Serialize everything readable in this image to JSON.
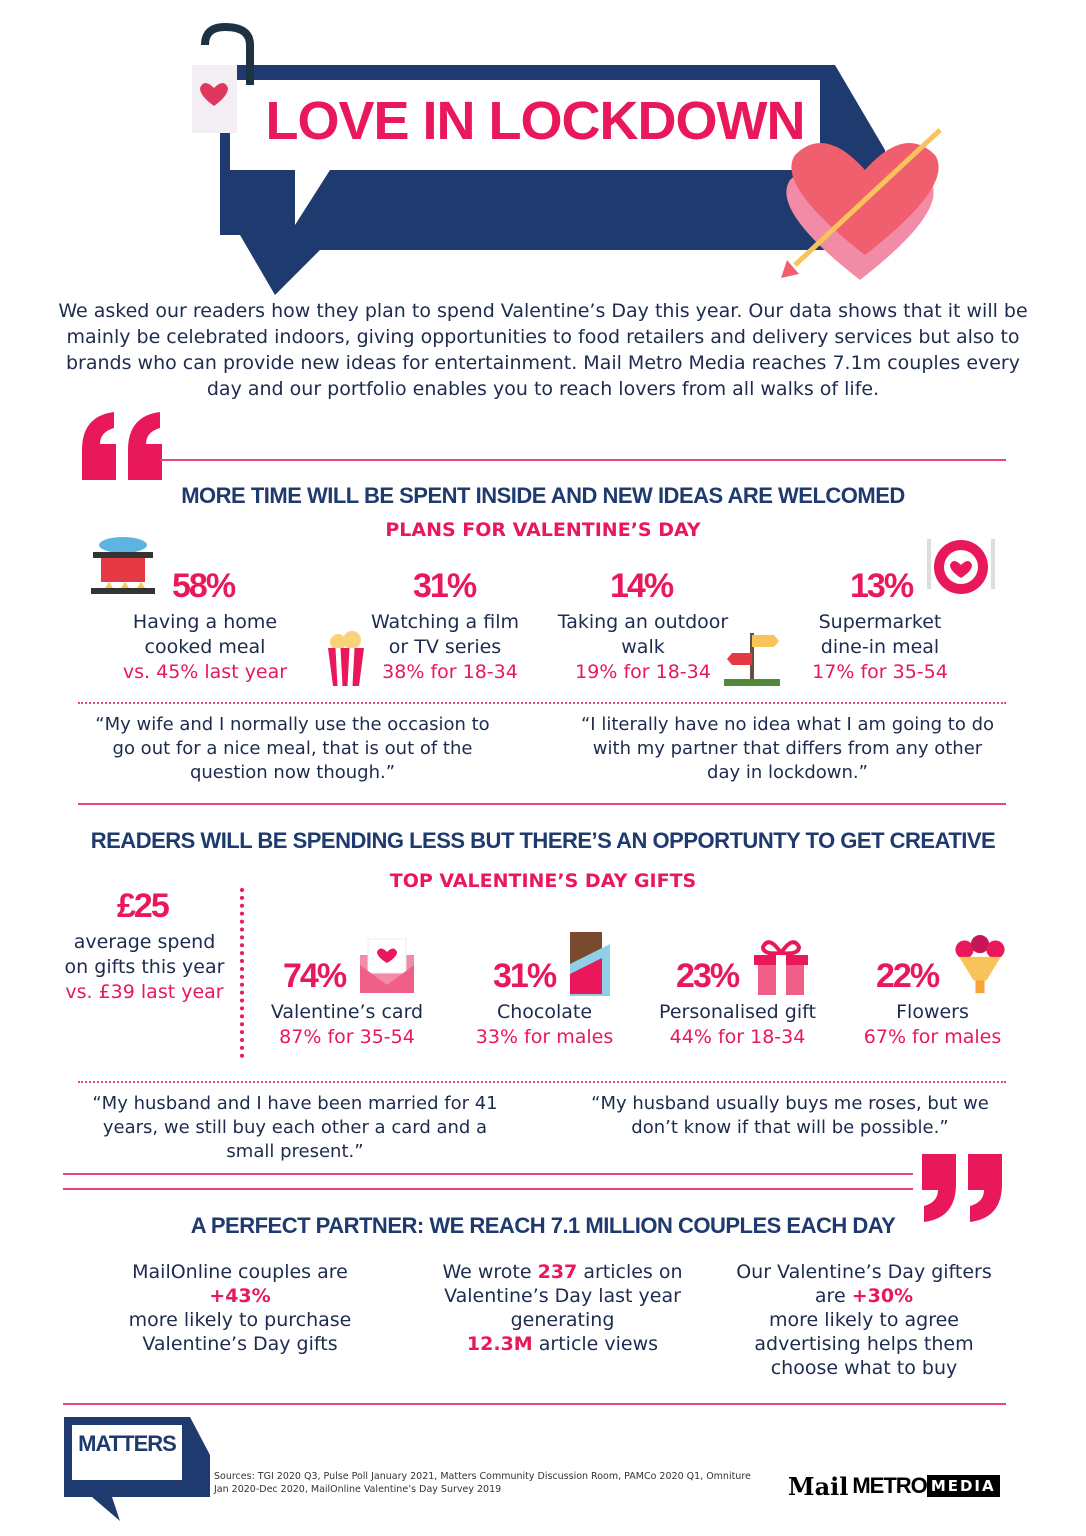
{
  "header": {
    "title": "LOVE IN LOCKDOWN"
  },
  "intro": "We asked our readers how they plan to spend Valentine’s Day this year. Our data shows that it will be mainly be celebrated indoors, giving opportunities to food retailers and delivery services but also to brands who can provide new ideas for entertainment. Mail Metro Media reaches 7.1m couples every day and our portfolio enables you to reach lovers from all walks of life.",
  "colors": {
    "accent": "#e8185a",
    "navy": "#1e3a6e",
    "text": "#1d2b4f"
  },
  "section1": {
    "heading": "MORE TIME WILL BE SPENT INSIDE AND NEW IDEAS ARE WELCOMED",
    "subheading": "PLANS FOR VALENTINE’S DAY",
    "stats": [
      {
        "value": "58%",
        "line1": "Having a home",
        "line2": "cooked meal",
        "detail": "vs. 45% last year",
        "icon": "cooking-pot-icon"
      },
      {
        "value": "31%",
        "line1": "Watching a film",
        "line2": "or TV series",
        "detail": "38% for 18-34",
        "icon": "popcorn-icon"
      },
      {
        "value": "14%",
        "line1": "Taking an outdoor",
        "line2": "walk",
        "detail": "19% for 18-34",
        "icon": "signpost-icon"
      },
      {
        "value": "13%",
        "line1": "Supermarket",
        "line2": "dine-in meal",
        "detail": "17% for 35-54",
        "icon": "plate-heart-icon"
      }
    ],
    "quotes": [
      "“My wife and I normally use the occasion to go out for a nice meal, that is out of the question now though.”",
      "“I literally have no idea what I am going to do with my partner that differs from any other day in lockdown.”"
    ]
  },
  "section2": {
    "heading": "READERS WILL BE SPENDING LESS BUT THERE’S AN OPPORTUNTY TO GET CREATIVE",
    "subheading": "TOP VALENTINE’S DAY GIFTS",
    "spend": {
      "value": "£25",
      "label": "average spend on gifts this year",
      "detail": "vs. £39 last year"
    },
    "gifts": [
      {
        "value": "74%",
        "label": "Valentine’s card",
        "detail": "87% for 35-54",
        "icon": "envelope-heart-icon"
      },
      {
        "value": "31%",
        "label": "Chocolate",
        "detail": "33% for males",
        "icon": "chocolate-icon"
      },
      {
        "value": "23%",
        "label": "Personalised gift",
        "detail": "44% for 18-34",
        "icon": "gift-icon"
      },
      {
        "value": "22%",
        "label": "Flowers",
        "detail": "67% for males",
        "icon": "flowers-icon"
      }
    ],
    "quotes": [
      "“My husband and I have been married for 41 years, we still buy each other a card and a small present.”",
      "“My husband usually buys me roses, but we don’t know if that will be possible.”"
    ]
  },
  "section3": {
    "heading": "A PERFECT PARTNER: WE REACH 7.1 MILLION COUPLES EACH DAY",
    "col1": {
      "a": "MailOnline couples are",
      "hl": "+43%",
      "b": "more likely to purchase Valentine’s Day gifts"
    },
    "col2": {
      "a": "We wrote",
      "hl1": "237",
      "b": "articles on Valentine’s Day last year generating",
      "hl2": "12.3M",
      "c": "article views"
    },
    "col3": {
      "a": "Our Valentine’s Day gifters are",
      "hl": "+30%",
      "b": "more likely to agree advertising helps them choose what to buy"
    }
  },
  "footer": {
    "matters_logo": "MATTERS",
    "sources": "Sources: TGI 2020 Q3, Pulse Poll January 2021, Matters Community Discussion Room, PAMCo 2020 Q1, Omniture Jan 2020-Dec 2020, MailOnline Valentine’s Day Survey 2019",
    "brand_logo": "Mail METRO MEDIA"
  }
}
